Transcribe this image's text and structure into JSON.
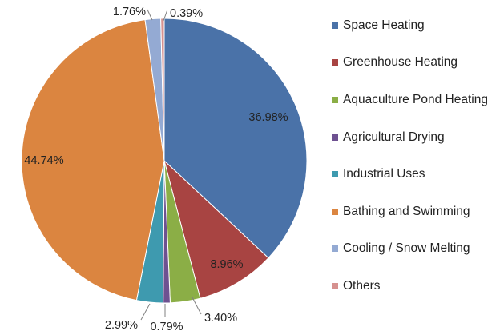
{
  "chart_data": {
    "type": "pie",
    "start_angle_deg": 0,
    "direction": "clockwise",
    "legend_position": "right",
    "slices": [
      {
        "name": "Space Heating",
        "value": 36.98,
        "label": "36.98%",
        "color": "#4A72A8"
      },
      {
        "name": "Greenhouse Heating",
        "value": 8.96,
        "label": "8.96%",
        "color": "#A84442"
      },
      {
        "name": "Aquaculture Pond Heating",
        "value": 3.4,
        "label": "3.40%",
        "color": "#8BAE46"
      },
      {
        "name": "Agricultural Drying",
        "value": 0.79,
        "label": "0.79%",
        "color": "#6E5191"
      },
      {
        "name": "Industrial Uses",
        "value": 2.99,
        "label": "2.99%",
        "color": "#3E9AAF"
      },
      {
        "name": "Bathing and Swimming",
        "value": 44.74,
        "label": "44.74%",
        "color": "#DB8540"
      },
      {
        "name": "Cooling / Snow Melting",
        "value": 1.76,
        "label": "1.76%",
        "color": "#94AAD3"
      },
      {
        "name": "Others",
        "value": 0.39,
        "label": "0.39%",
        "color": "#D6918F"
      }
    ]
  }
}
